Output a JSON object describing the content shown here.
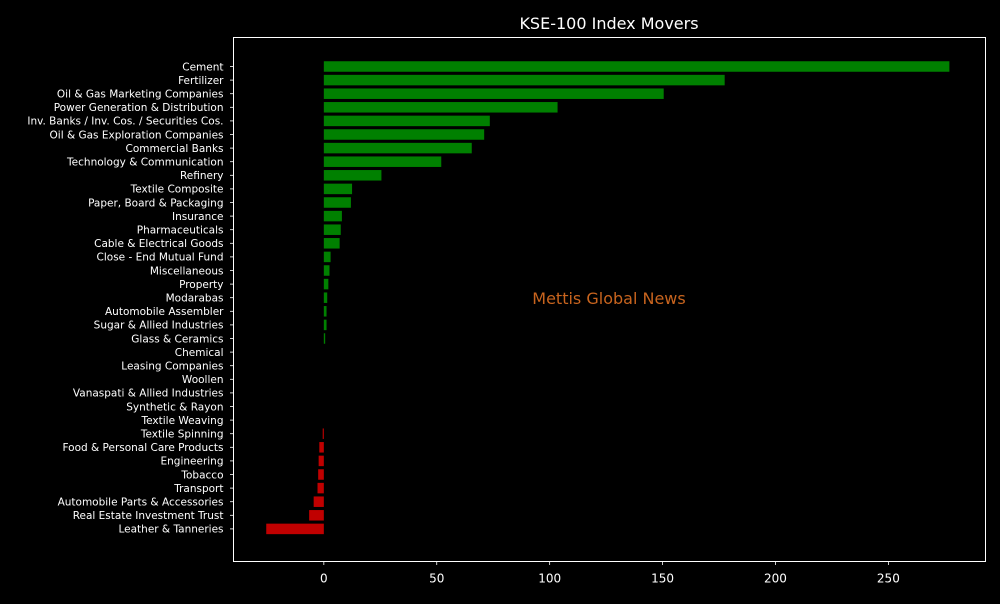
{
  "chart_data": {
    "type": "bar",
    "orientation": "horizontal",
    "title": "KSE-100 Index Movers",
    "watermark": "Mettis Global News",
    "xlabel": "",
    "ylabel": "",
    "xlim": [
      -40,
      293
    ],
    "x_ticks": [
      0,
      50,
      100,
      150,
      200,
      250
    ],
    "grid": false,
    "colors": {
      "background": "#000000",
      "text": "#ffffff",
      "positive": "#008000",
      "negative": "#c00000",
      "watermark": "#c8641e"
    },
    "categories": [
      "Cement",
      "Fertilizer",
      "Oil & Gas Marketing Companies",
      "Power Generation & Distribution",
      "Inv. Banks / Inv. Cos. / Securities Cos.",
      "Oil & Gas Exploration Companies",
      "Commercial Banks",
      "Technology & Communication",
      "Refinery",
      "Textile Composite",
      "Paper, Board & Packaging",
      "Insurance",
      "Pharmaceuticals",
      "Cable & Electrical Goods",
      "Close - End Mutual Fund",
      "Miscellaneous",
      "Property",
      "Modarabas",
      "Automobile Assembler",
      "Sugar & Allied Industries",
      "Glass & Ceramics",
      "Chemical",
      "Leasing Companies",
      "Woollen",
      "Vanaspati & Allied Industries",
      "Synthetic & Rayon",
      "Textile Weaving",
      "Textile Spinning",
      "Food & Personal Care Products",
      "Engineering",
      "Tobacco",
      "Transport",
      "Automobile Parts & Accessories",
      "Real Estate Investment Trust",
      "Leather & Tanneries"
    ],
    "values": [
      277,
      177.5,
      150.5,
      103.5,
      73.5,
      71,
      65.5,
      52,
      25.5,
      12.5,
      12,
      8,
      7.5,
      7,
      3,
      2.5,
      2,
      1.5,
      1.2,
      1.2,
      0.6,
      0,
      0,
      0,
      0,
      0,
      0,
      -0.5,
      -2,
      -2.3,
      -2.5,
      -2.8,
      -4.5,
      -6.5,
      -25.5
    ]
  }
}
